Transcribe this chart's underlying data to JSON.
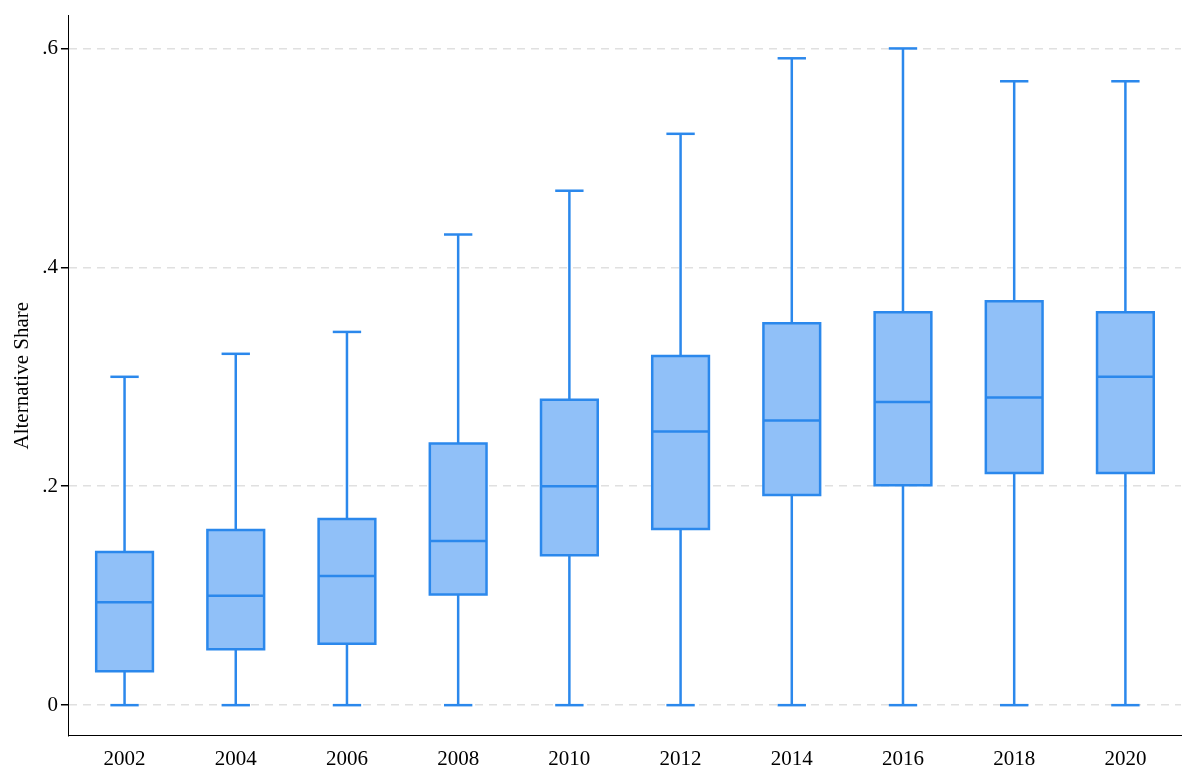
{
  "chart_data": {
    "type": "box",
    "ylabel": "Alternative Share",
    "categories": [
      "2002",
      "2004",
      "2006",
      "2008",
      "2010",
      "2012",
      "2014",
      "2016",
      "2018",
      "2020"
    ],
    "color": "#90c0f8",
    "boxes": [
      {
        "low": 0,
        "q1": 0.031,
        "median": 0.094,
        "q3": 0.14,
        "high": 0.3
      },
      {
        "low": 0,
        "q1": 0.051,
        "median": 0.1,
        "q3": 0.16,
        "high": 0.321
      },
      {
        "low": 0,
        "q1": 0.056,
        "median": 0.118,
        "q3": 0.17,
        "high": 0.341
      },
      {
        "low": 0,
        "q1": 0.101,
        "median": 0.15,
        "q3": 0.239,
        "high": 0.43
      },
      {
        "low": 0,
        "q1": 0.137,
        "median": 0.2,
        "q3": 0.279,
        "high": 0.47
      },
      {
        "low": 0,
        "q1": 0.161,
        "median": 0.25,
        "q3": 0.319,
        "high": 0.522
      },
      {
        "low": 0,
        "q1": 0.192,
        "median": 0.26,
        "q3": 0.349,
        "high": 0.591
      },
      {
        "low": 0,
        "q1": 0.201,
        "median": 0.277,
        "q3": 0.359,
        "high": 0.6
      },
      {
        "low": 0,
        "q1": 0.212,
        "median": 0.281,
        "q3": 0.369,
        "high": 0.57
      },
      {
        "low": 0,
        "q1": 0.212,
        "median": 0.3,
        "q3": 0.359,
        "high": 0.57
      }
    ],
    "ylim": [
      -0.028,
      0.63
    ],
    "yticks": [
      {
        "value": 0,
        "label": "0"
      },
      {
        "value": 0.2,
        "label": ".2"
      },
      {
        "value": 0.4,
        "label": ".4"
      },
      {
        "value": 0.6,
        "label": ".6"
      }
    ],
    "grid": "y",
    "legend": false
  }
}
